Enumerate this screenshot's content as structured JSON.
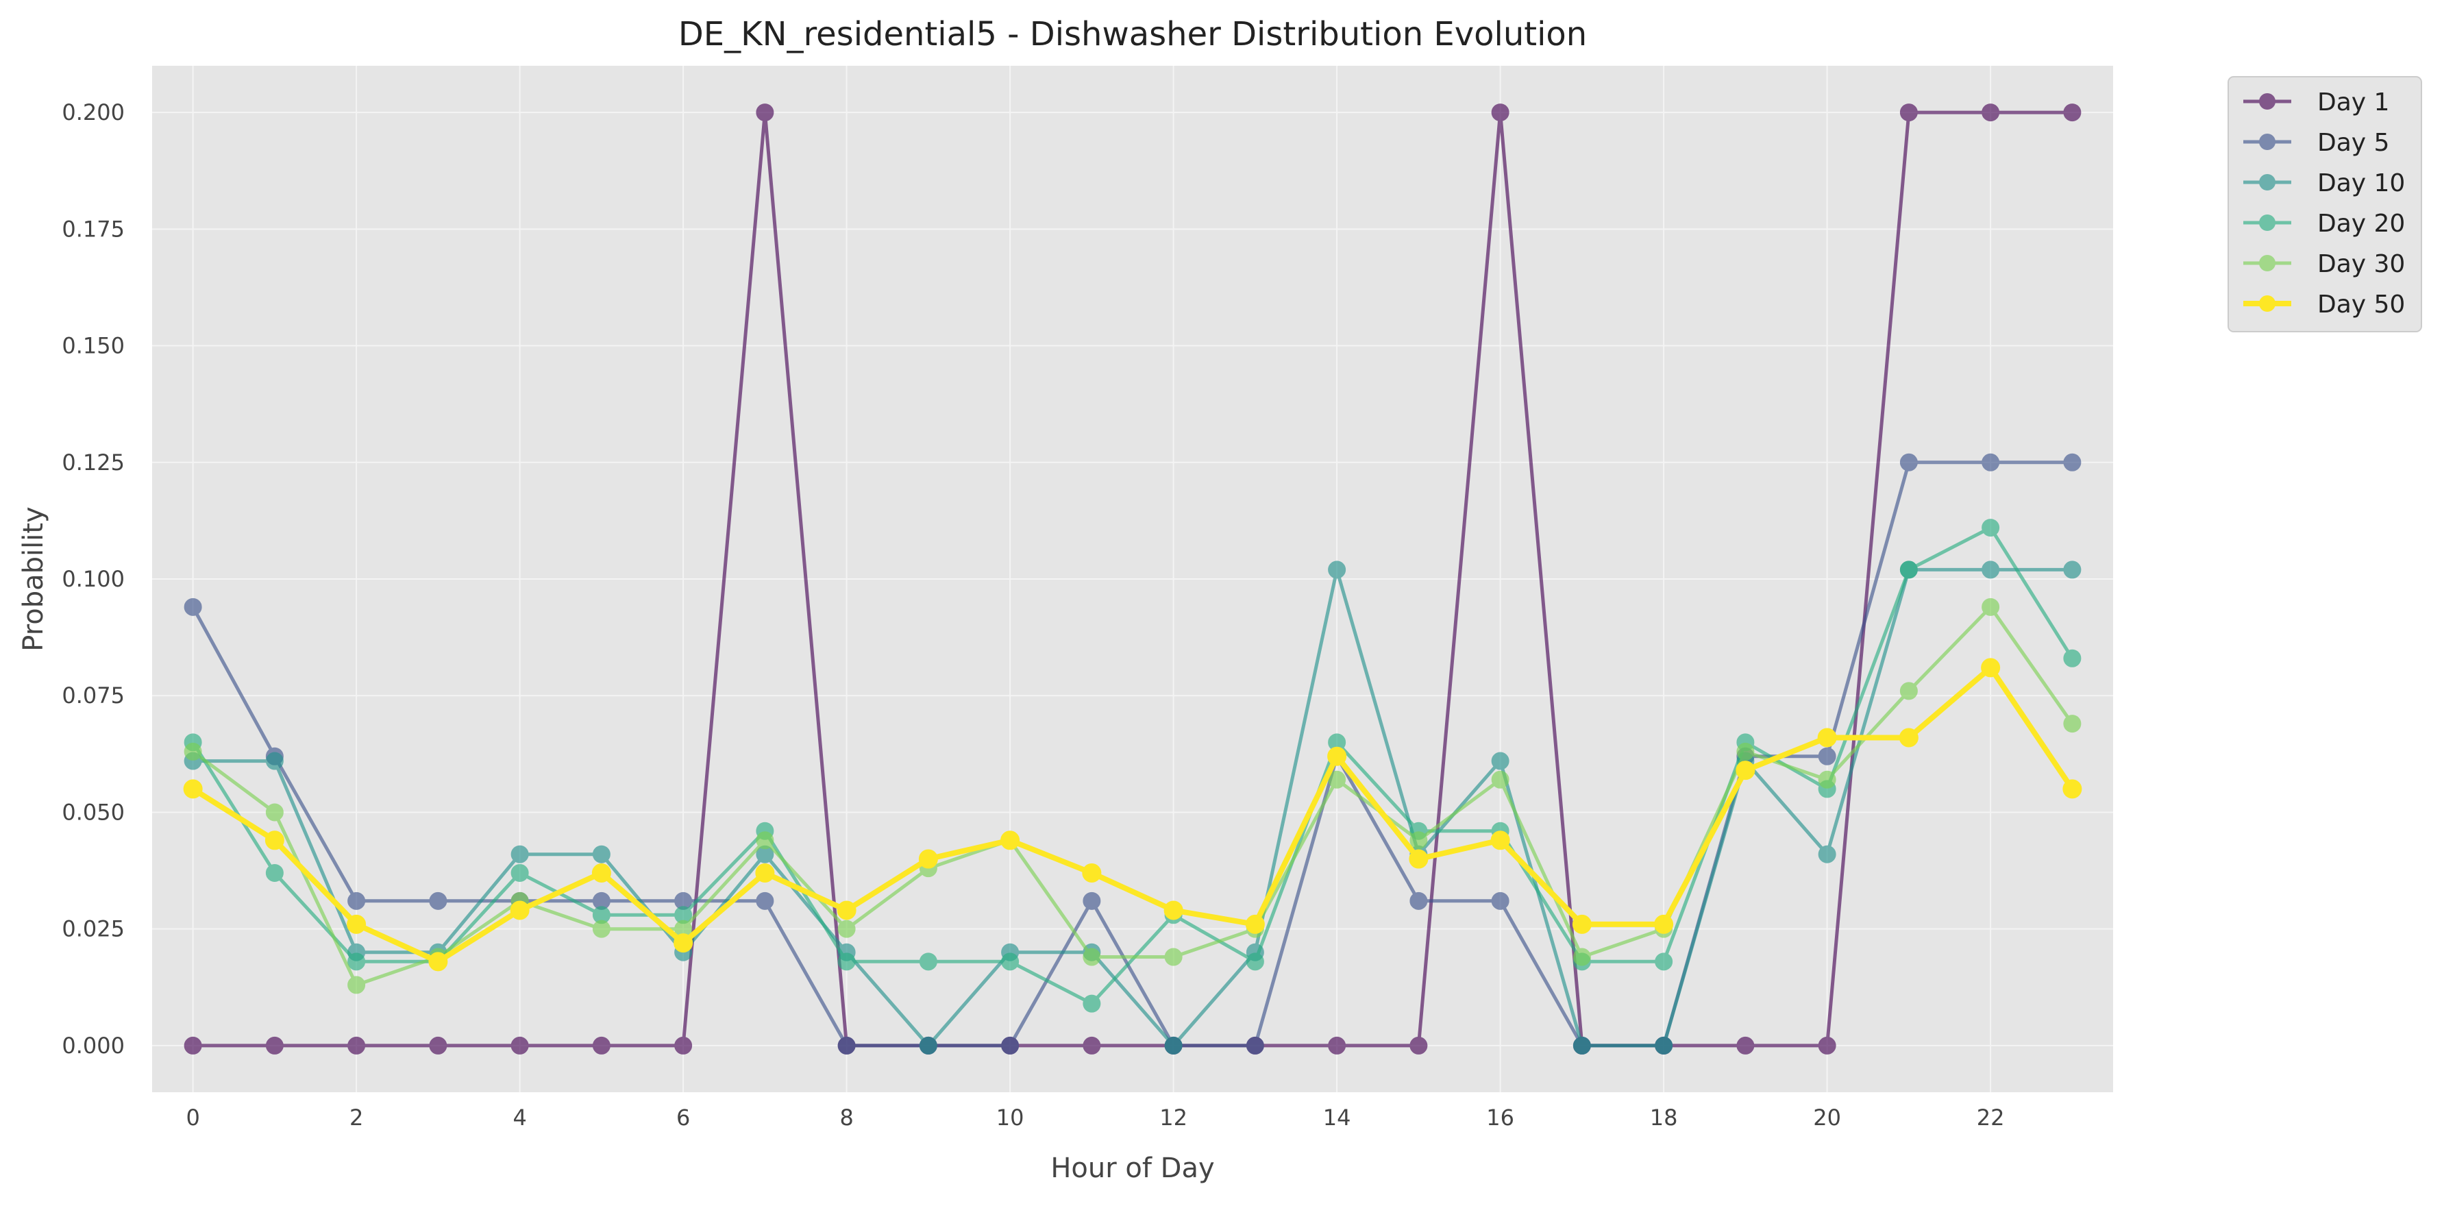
{
  "chart_data": {
    "type": "line",
    "title": "DE_KN_residential5 - Dishwasher Distribution Evolution",
    "xlabel": "Hour of Day",
    "ylabel": "Probability",
    "xlim": [
      -0.5,
      23.5
    ],
    "ylim": [
      -0.01,
      0.21
    ],
    "xticks": [
      0,
      2,
      4,
      6,
      8,
      10,
      12,
      14,
      16,
      18,
      20,
      22
    ],
    "xtick_labels": [
      "0",
      "2",
      "4",
      "6",
      "8",
      "10",
      "12",
      "14",
      "16",
      "18",
      "20",
      "22"
    ],
    "yticks": [
      0,
      0.025,
      0.05,
      0.075,
      0.1,
      0.125,
      0.15,
      0.175,
      0.2
    ],
    "ytick_labels": [
      "0.000",
      "0.025",
      "0.050",
      "0.075",
      "0.100",
      "0.125",
      "0.150",
      "0.175",
      "0.200"
    ],
    "grid": true,
    "legend_position": "outside-top-right",
    "x": [
      0,
      1,
      2,
      3,
      4,
      5,
      6,
      7,
      8,
      9,
      10,
      11,
      12,
      13,
      14,
      15,
      16,
      17,
      18,
      19,
      20,
      21,
      22,
      23
    ],
    "series": [
      {
        "name": "Day 1",
        "color": "#440154",
        "values": [
          0,
          0,
          0,
          0,
          0,
          0,
          0,
          0.2,
          0,
          0,
          0,
          0,
          0,
          0,
          0,
          0,
          0.2,
          0,
          0,
          0,
          0,
          0.2,
          0.2,
          0.2
        ]
      },
      {
        "name": "Day 5",
        "color": "#3b528b",
        "values": [
          0.094,
          0.062,
          0.031,
          0.031,
          0.031,
          0.031,
          0.031,
          0.031,
          0,
          0,
          0,
          0.031,
          0,
          0,
          0.062,
          0.031,
          0.031,
          0,
          0,
          0.062,
          0.062,
          0.125,
          0.125,
          0.125
        ]
      },
      {
        "name": "Day 10",
        "color": "#21918c",
        "values": [
          0.061,
          0.061,
          0.02,
          0.02,
          0.041,
          0.041,
          0.02,
          0.041,
          0.02,
          0,
          0.02,
          0.02,
          0,
          0.02,
          0.102,
          0.041,
          0.061,
          0,
          0,
          0.061,
          0.041,
          0.102,
          0.102,
          0.102
        ]
      },
      {
        "name": "Day 20",
        "color": "#27ad81",
        "values": [
          0.065,
          0.037,
          0.018,
          0.018,
          0.037,
          0.028,
          0.028,
          0.046,
          0.018,
          0.018,
          0.018,
          0.009,
          0.028,
          0.018,
          0.065,
          0.046,
          0.046,
          0.018,
          0.018,
          0.065,
          0.055,
          0.102,
          0.111,
          0.083
        ]
      },
      {
        "name": "Day 30",
        "color": "#7ad151",
        "values": [
          0.063,
          0.05,
          0.013,
          0.019,
          0.031,
          0.025,
          0.025,
          0.044,
          0.025,
          0.038,
          0.044,
          0.019,
          0.019,
          0.025,
          0.057,
          0.044,
          0.057,
          0.019,
          0.025,
          0.063,
          0.057,
          0.076,
          0.094,
          0.069
        ]
      },
      {
        "name": "Day 50",
        "color": "#fde725",
        "values": [
          0.055,
          0.044,
          0.026,
          0.018,
          0.029,
          0.037,
          0.022,
          0.037,
          0.029,
          0.04,
          0.044,
          0.037,
          0.029,
          0.026,
          0.062,
          0.04,
          0.044,
          0.026,
          0.026,
          0.059,
          0.066,
          0.066,
          0.081,
          0.055
        ]
      }
    ]
  }
}
